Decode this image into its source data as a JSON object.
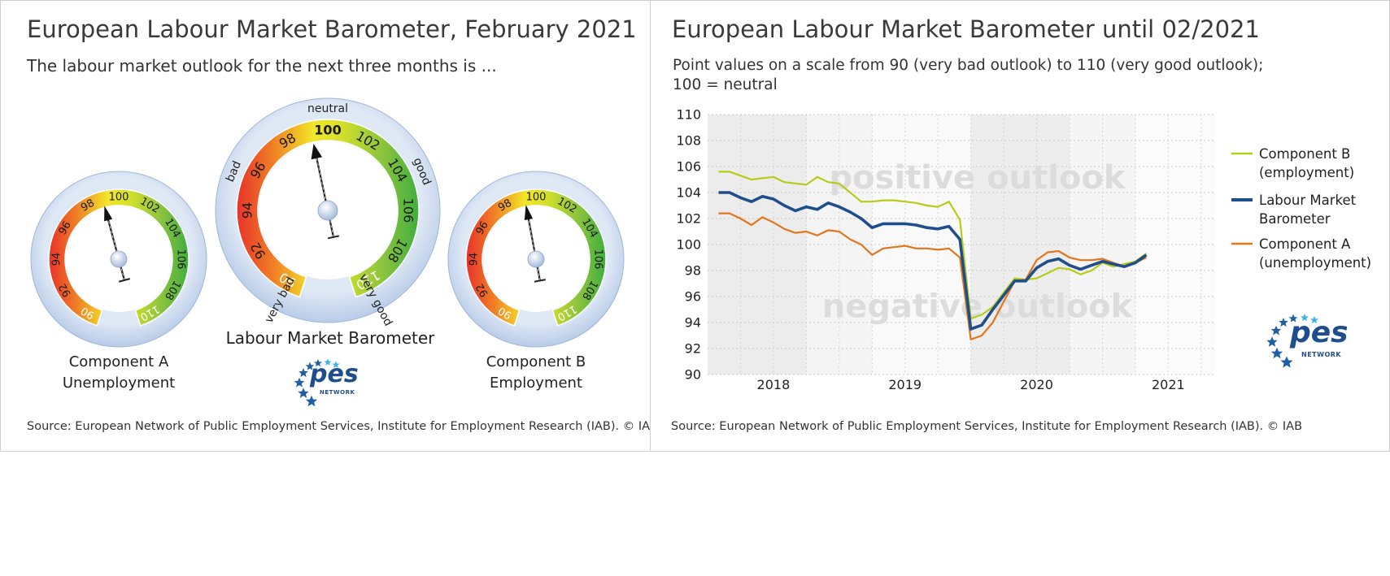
{
  "left_panel": {
    "title": "European Labour Market Barometer, February 2021",
    "subtitle": "The labour market outlook for the next three months is ...",
    "source": "Source: European Network of Public Employment Services, Institute for Employment Research (IAB).  © IAB",
    "gauges": [
      {
        "id": "component-a",
        "label_line1": "Component A",
        "label_line2": "Unemployment",
        "value": 99.0,
        "ticks": [
          "90",
          "92",
          "94",
          "96",
          "98",
          "100",
          "102",
          "104",
          "106",
          "108",
          "110"
        ]
      },
      {
        "id": "barometer",
        "label_line1": "Labour Market Barometer",
        "label_line2": "",
        "value": 99.2,
        "ticks": [
          "90",
          "92",
          "94",
          "96",
          "98",
          "100",
          "102",
          "104",
          "106",
          "108",
          "110"
        ],
        "words": {
          "very_bad": "very bad",
          "bad": "bad",
          "neutral": "neutral",
          "good": "good",
          "very_good": "very good"
        }
      },
      {
        "id": "component-b",
        "label_line1": "Component B",
        "label_line2": "Employment",
        "value": 99.3,
        "ticks": [
          "90",
          "92",
          "94",
          "96",
          "98",
          "100",
          "102",
          "104",
          "106",
          "108",
          "110"
        ]
      }
    ],
    "logo": {
      "text": "pes",
      "subtext": "NETWORK"
    }
  },
  "right_panel": {
    "title": "European Labour Market Barometer until 02/2021",
    "subtitle_line1": "Point values on a scale from 90 (very bad outlook) to 110 (very good outlook);",
    "subtitle_line2": "100 = neutral",
    "source": "Source: European Network of Public Employment Services, Institute for Employment Research (IAB).  © IAB",
    "logo": {
      "text": "pes",
      "subtext": "NETWORK"
    }
  },
  "chart_data": {
    "type": "line",
    "ylim": [
      90,
      110
    ],
    "yticks": [
      90,
      92,
      94,
      96,
      98,
      100,
      102,
      104,
      106,
      108,
      110
    ],
    "xlim": [
      2017.75,
      2021.6
    ],
    "xticks": [
      2018,
      2019,
      2020,
      2021
    ],
    "xtick_labels": [
      "2018",
      "2019",
      "2020",
      "2021"
    ],
    "annotations": {
      "upper": "positive outlook",
      "lower": "negative outlook"
    },
    "grid": true,
    "legend_position": "right",
    "x": [
      "2017-11",
      "2017-12",
      "2018-01",
      "2018-02",
      "2018-03",
      "2018-04",
      "2018-05",
      "2018-06",
      "2018-07",
      "2018-08",
      "2018-09",
      "2018-10",
      "2018-11",
      "2018-12",
      "2019-01",
      "2019-02",
      "2019-03",
      "2019-04",
      "2019-05",
      "2019-06",
      "2019-07",
      "2019-08",
      "2019-09",
      "2019-10",
      "2019-11",
      "2019-12",
      "2020-01",
      "2020-02",
      "2020-03",
      "2020-04",
      "2020-05",
      "2020-06",
      "2020-07",
      "2020-08",
      "2020-09",
      "2020-10",
      "2020-11",
      "2020-12",
      "2021-01",
      "2021-02"
    ],
    "series": [
      {
        "name": "Component B\n(employment)",
        "name_line1": "Component B",
        "name_line2": "(employment)",
        "color": "#b5cc18",
        "values": [
          105.6,
          105.6,
          105.3,
          105.0,
          105.1,
          105.2,
          104.8,
          104.7,
          104.6,
          105.2,
          104.8,
          104.7,
          104.0,
          103.3,
          103.3,
          103.4,
          103.4,
          103.3,
          103.2,
          103.0,
          102.9,
          103.3,
          101.9,
          94.3,
          94.6,
          95.2,
          96.3,
          97.4,
          97.3,
          97.4,
          97.8,
          98.2,
          98.1,
          97.7,
          98.0,
          98.6,
          98.3,
          98.5,
          98.7,
          99.3
        ]
      },
      {
        "name": "Labour Market\nBarometer",
        "name_line1": "Labour Market",
        "name_line2": "Barometer",
        "color": "#1f4e8c",
        "values": [
          104.0,
          104.0,
          103.6,
          103.3,
          103.7,
          103.5,
          103.0,
          102.6,
          102.9,
          102.7,
          103.2,
          102.9,
          102.5,
          102.0,
          101.3,
          101.6,
          101.6,
          101.6,
          101.5,
          101.3,
          101.2,
          101.4,
          100.4,
          93.5,
          93.8,
          95.0,
          96.1,
          97.2,
          97.2,
          98.2,
          98.7,
          98.9,
          98.4,
          98.1,
          98.4,
          98.7,
          98.5,
          98.3,
          98.6,
          99.2
        ]
      },
      {
        "name": "Component A\n(unemployment)",
        "name_line1": "Component A",
        "name_line2": "(unemployment)",
        "color": "#e2761b",
        "values": [
          102.4,
          102.4,
          102.0,
          101.5,
          102.1,
          101.7,
          101.2,
          100.9,
          101.0,
          100.7,
          101.1,
          101.0,
          100.4,
          100.0,
          99.2,
          99.7,
          99.8,
          99.9,
          99.7,
          99.7,
          99.6,
          99.7,
          99.0,
          92.7,
          93.0,
          94.0,
          95.6,
          97.2,
          97.3,
          98.8,
          99.4,
          99.5,
          99.0,
          98.8,
          98.8,
          98.9,
          98.6,
          98.3,
          98.6,
          99.0
        ]
      }
    ]
  }
}
